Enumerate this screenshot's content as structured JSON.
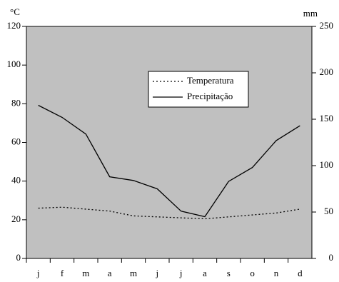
{
  "chart_data": {
    "type": "line",
    "y_unit": "°C",
    "y2_unit": "mm",
    "categories": [
      "j",
      "f",
      "m",
      "a",
      "m",
      "j",
      "j",
      "a",
      "s",
      "o",
      "n",
      "d"
    ],
    "series": [
      {
        "name": "Temperatura",
        "color": "#000000",
        "style": "dotted",
        "axis": "y",
        "values": [
          26,
          26.5,
          25.5,
          24.5,
          22,
          21.5,
          21,
          20.5,
          21.5,
          22.5,
          23.5,
          25.5
        ]
      },
      {
        "name": "Precipitação",
        "color": "#000000",
        "style": "solid",
        "axis": "y2",
        "values": [
          165,
          152,
          134,
          88,
          84,
          75,
          51,
          45,
          83,
          98,
          127,
          143
        ]
      }
    ],
    "ylim": [
      0,
      120
    ],
    "yticks": [
      0,
      20,
      40,
      60,
      80,
      100,
      120
    ],
    "y2lim": [
      0,
      250
    ],
    "y2ticks": [
      0,
      50,
      100,
      150,
      200,
      250
    ],
    "plot_color": "#c0c0c0",
    "legend": "top-center"
  }
}
